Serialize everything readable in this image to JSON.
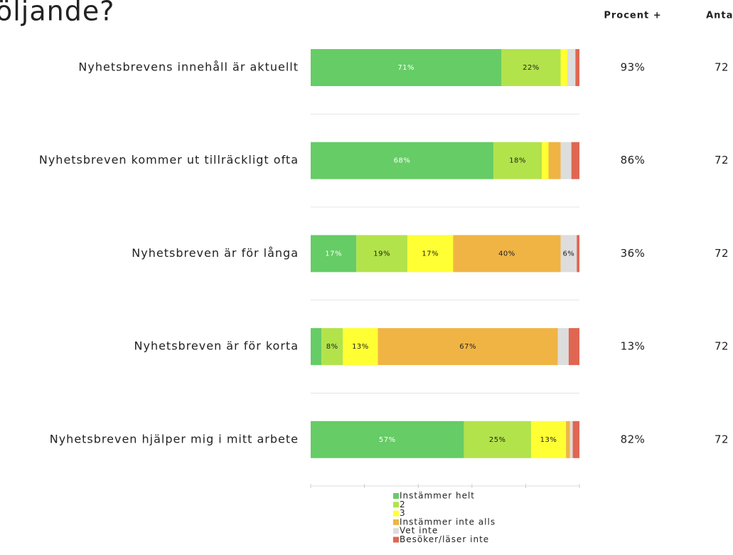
{
  "chart_data": {
    "type": "stacked-bar-horizontal",
    "title": "öljande?",
    "categories": [
      "Nyhetsbrevens innehåll är aktuellt",
      "Nyhetsbreven kommer ut tillräckligt ofta",
      "Nyhetsbreven är för långa",
      "Nyhetsbreven är för korta",
      "Nyhetsbreven hjälper mig i mitt arbete"
    ],
    "series": [
      {
        "name": "Instämmer helt",
        "color": "#66cc66",
        "values": [
          71,
          68,
          17,
          4,
          57
        ],
        "value_labels": [
          "71%",
          "68%",
          "17%",
          null,
          "57%"
        ]
      },
      {
        "name": "2",
        "color": "#b2e34b",
        "values": [
          22,
          18,
          19,
          8,
          25
        ],
        "value_labels": [
          "22%",
          "18%",
          "19%",
          "8%",
          "25%"
        ]
      },
      {
        "name": "3",
        "color": "#ffff33",
        "values": [
          2.5,
          2.5,
          17,
          13,
          13
        ],
        "value_labels": [
          null,
          null,
          "17%",
          "13%",
          "13%"
        ]
      },
      {
        "name": "Instämmer inte alls",
        "color": "#f0b444",
        "values": [
          0,
          4.5,
          40,
          67,
          1.5
        ],
        "value_labels": [
          null,
          null,
          "40%",
          "67%",
          null
        ]
      },
      {
        "name": "Vet inte",
        "color": "#dddddd",
        "values": [
          3,
          4,
          6,
          4,
          1
        ],
        "value_labels": [
          null,
          null,
          "6%",
          null,
          null
        ]
      },
      {
        "name": "Besöker/läser inte",
        "color": "#e06652",
        "values": [
          1.5,
          3,
          1,
          4,
          2.5
        ],
        "value_labels": [
          null,
          null,
          null,
          null,
          null
        ]
      }
    ],
    "xlim": [
      0,
      100
    ],
    "xticks": [
      0,
      20,
      40,
      60,
      80,
      100
    ],
    "columns": [
      {
        "header": "Procent +",
        "values": [
          "93%",
          "86%",
          "36%",
          "13%",
          "82%"
        ]
      },
      {
        "header": "Antal",
        "values": [
          72,
          72,
          72,
          72,
          72
        ]
      }
    ]
  }
}
